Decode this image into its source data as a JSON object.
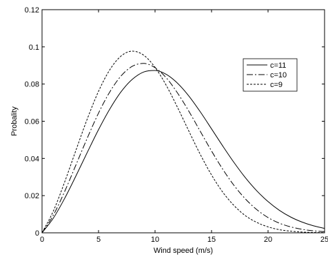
{
  "chart_data": {
    "type": "line",
    "title": "",
    "xlabel": "Wind speed (m/s)",
    "ylabel": "Probality",
    "xlim": [
      0,
      25
    ],
    "ylim": [
      0,
      0.12
    ],
    "xticks": [
      0,
      5,
      10,
      15,
      20,
      25
    ],
    "yticks": [
      0,
      0.02,
      0.04,
      0.06,
      0.08,
      0.1,
      0.12
    ],
    "ytick_labels": [
      "0",
      "0.02",
      "0.04",
      "0.06",
      "0.08",
      "0.1",
      "0.12"
    ],
    "grid": false,
    "legend_position": "right",
    "x": [
      0,
      1,
      2,
      3,
      4,
      5,
      6,
      7,
      8,
      9,
      10,
      11,
      12,
      13,
      14,
      15,
      16,
      17,
      18,
      19,
      20,
      21,
      22,
      23,
      24,
      25
    ],
    "series": [
      {
        "name": "c=11",
        "line_style": "solid",
        "values": [
          0,
          0.0079,
          0.0185,
          0.0306,
          0.0432,
          0.0555,
          0.0666,
          0.0759,
          0.0826,
          0.0865,
          0.0873,
          0.0852,
          0.0804,
          0.0735,
          0.0651,
          0.0559,
          0.0466,
          0.0377,
          0.0296,
          0.0226,
          0.0168,
          0.0121,
          0.0085,
          0.0058,
          0.0038,
          0.0024
        ]
      },
      {
        "name": "c=10",
        "line_style": "dashdot",
        "values": [
          0,
          0.0095,
          0.0222,
          0.0365,
          0.0509,
          0.0644,
          0.0758,
          0.0844,
          0.0896,
          0.0911,
          0.0888,
          0.0833,
          0.0751,
          0.0653,
          0.0546,
          0.044,
          0.0341,
          0.0254,
          0.0182,
          0.0125,
          0.0082,
          0.0052,
          0.0032,
          0.0019,
          0.0011,
          0.0006
        ]
      },
      {
        "name": "c=9",
        "line_style": "dotted",
        "values": [
          0,
          0.0117,
          0.0273,
          0.0444,
          0.0612,
          0.0761,
          0.0877,
          0.0951,
          0.0977,
          0.0955,
          0.089,
          0.0792,
          0.0673,
          0.0546,
          0.0422,
          0.0311,
          0.0218,
          0.0146,
          0.0092,
          0.0056,
          0.0032,
          0.0017,
          0.0009,
          0.0004,
          0.0002,
          0.0001
        ]
      }
    ]
  }
}
